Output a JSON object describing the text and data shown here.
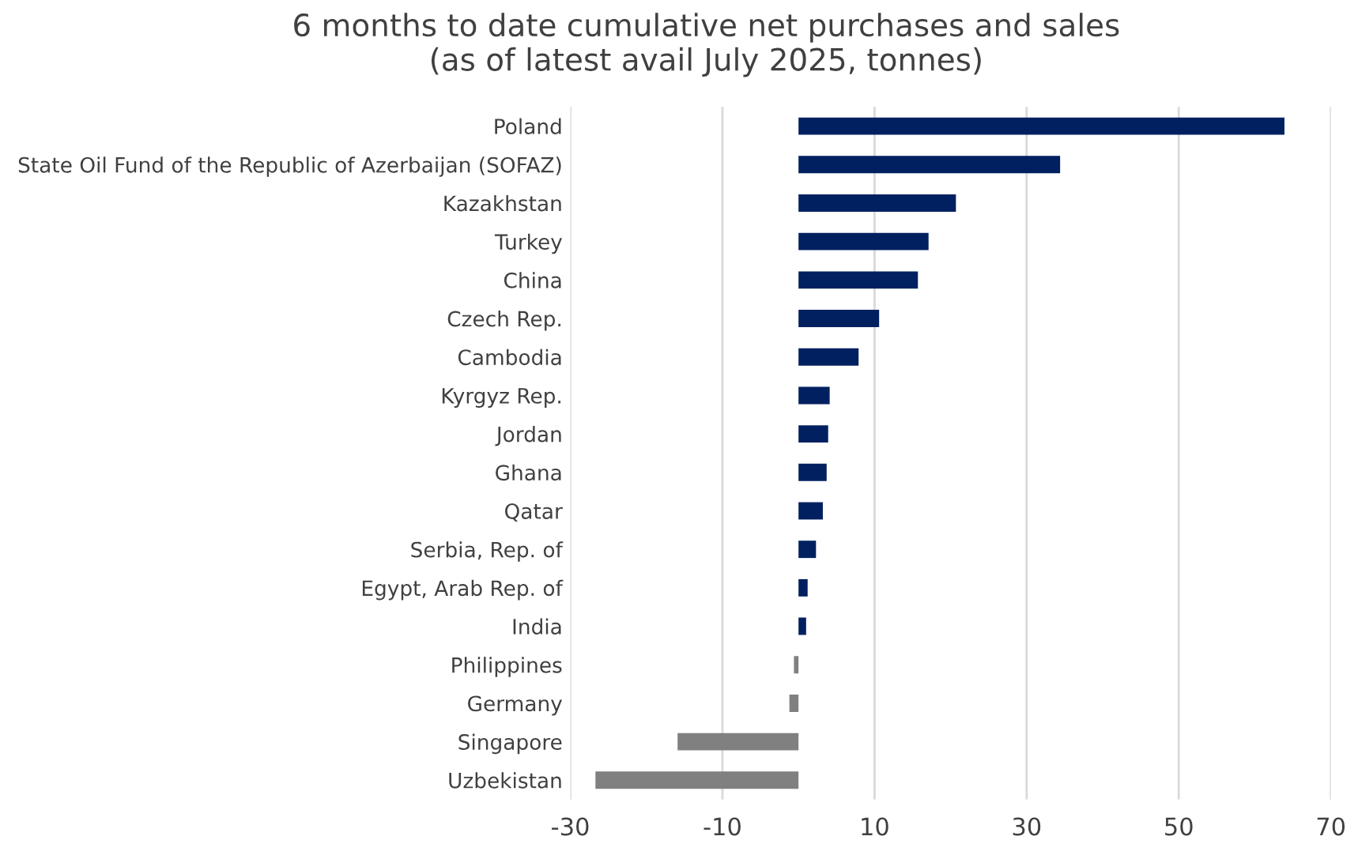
{
  "chart_data": {
    "type": "bar",
    "orientation": "horizontal",
    "title": "6 months to date cumulative net purchases and sales\n(as of latest avail July 2025, tonnes)",
    "categories": [
      "Poland",
      "State Oil Fund of the Republic of Azerbaijan (SOFAZ)",
      "Kazakhstan",
      "Turkey",
      "China",
      "Czech Rep.",
      "Cambodia",
      "Kyrgyz Rep.",
      "Jordan",
      "Ghana",
      "Qatar",
      "Serbia, Rep. of",
      "Egypt, Arab Rep. of",
      "India",
      "Philippines",
      "Germany",
      "Singapore",
      "Uzbekistan"
    ],
    "values": [
      63.9,
      34.4,
      20.7,
      17.1,
      15.7,
      10.6,
      7.9,
      4.1,
      3.9,
      3.7,
      3.2,
      2.3,
      1.2,
      1.0,
      -0.6,
      -1.2,
      -15.9,
      -26.7
    ],
    "colors": [
      "#002060",
      "#002060",
      "#002060",
      "#002060",
      "#002060",
      "#002060",
      "#002060",
      "#002060",
      "#002060",
      "#002060",
      "#002060",
      "#002060",
      "#002060",
      "#002060",
      "#808080",
      "#808080",
      "#808080",
      "#808080"
    ],
    "xlim": [
      -30,
      70
    ],
    "xticks": [
      -30,
      -10,
      10,
      30,
      50,
      70
    ],
    "grid": "x"
  }
}
